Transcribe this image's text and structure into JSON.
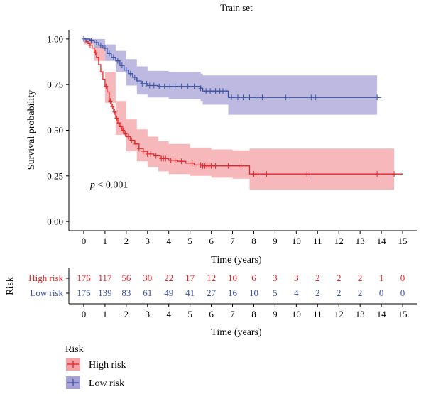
{
  "chart_data": {
    "type": "line",
    "title": "Train set",
    "xlabel": "Time (years)",
    "ylabel": "Survival probability",
    "xlim": [
      -0.7,
      15.7
    ],
    "ylim": [
      -0.05,
      1.05
    ],
    "x_ticks": [
      "0",
      "1",
      "2",
      "3",
      "4",
      "5",
      "6",
      "7",
      "8",
      "9",
      "10",
      "11",
      "12",
      "13",
      "14",
      "15"
    ],
    "y_ticks": [
      "0.00",
      "0.25",
      "0.50",
      "0.75",
      "1.00"
    ],
    "annotation": {
      "p_label": "p",
      "p_value": "< 0.001",
      "x": 0.3,
      "y": 0.185
    },
    "series": [
      {
        "name": "High risk",
        "color": "#e3262a",
        "band_color": "#f4a0a4",
        "curve": [
          [
            0,
            1.0
          ],
          [
            0.1,
            0.985
          ],
          [
            0.2,
            0.975
          ],
          [
            0.3,
            0.965
          ],
          [
            0.4,
            0.95
          ],
          [
            0.5,
            0.925
          ],
          [
            0.6,
            0.9
          ],
          [
            0.7,
            0.86
          ],
          [
            0.8,
            0.82
          ],
          [
            0.9,
            0.78
          ],
          [
            1.0,
            0.74
          ],
          [
            1.1,
            0.71
          ],
          [
            1.2,
            0.66
          ],
          [
            1.3,
            0.63
          ],
          [
            1.4,
            0.6
          ],
          [
            1.5,
            0.565
          ],
          [
            1.6,
            0.54
          ],
          [
            1.7,
            0.52
          ],
          [
            1.8,
            0.5
          ],
          [
            1.9,
            0.48
          ],
          [
            2.0,
            0.465
          ],
          [
            2.2,
            0.445
          ],
          [
            2.4,
            0.425
          ],
          [
            2.6,
            0.4
          ],
          [
            2.8,
            0.385
          ],
          [
            3.0,
            0.37
          ],
          [
            3.3,
            0.36
          ],
          [
            3.6,
            0.345
          ],
          [
            4.0,
            0.335
          ],
          [
            4.4,
            0.33
          ],
          [
            4.8,
            0.32
          ],
          [
            5.2,
            0.31
          ],
          [
            5.6,
            0.305
          ],
          [
            6.0,
            0.305
          ],
          [
            7.0,
            0.305
          ],
          [
            7.8,
            0.305
          ],
          [
            7.8,
            0.26
          ],
          [
            15.0,
            0.26
          ]
        ],
        "upper": [
          [
            0,
            1.0
          ],
          [
            0.5,
            0.96
          ],
          [
            1.0,
            0.82
          ],
          [
            1.5,
            0.66
          ],
          [
            2.0,
            0.56
          ],
          [
            2.5,
            0.505
          ],
          [
            3.0,
            0.465
          ],
          [
            3.5,
            0.44
          ],
          [
            4.0,
            0.425
          ],
          [
            5.0,
            0.405
          ],
          [
            6.0,
            0.395
          ],
          [
            7.0,
            0.39
          ],
          [
            7.8,
            0.39
          ],
          [
            7.8,
            0.4
          ],
          [
            14.6,
            0.4
          ]
        ],
        "lower": [
          [
            0,
            0.97
          ],
          [
            0.5,
            0.88
          ],
          [
            1.0,
            0.65
          ],
          [
            1.5,
            0.475
          ],
          [
            2.0,
            0.385
          ],
          [
            2.5,
            0.33
          ],
          [
            3.0,
            0.3
          ],
          [
            3.5,
            0.275
          ],
          [
            4.0,
            0.26
          ],
          [
            5.0,
            0.25
          ],
          [
            6.0,
            0.24
          ],
          [
            7.0,
            0.235
          ],
          [
            7.8,
            0.235
          ],
          [
            7.8,
            0.175
          ],
          [
            14.6,
            0.175
          ]
        ],
        "censors": [
          0.3,
          0.55,
          0.85,
          1.05,
          1.25,
          1.35,
          1.45,
          1.55,
          1.65,
          1.75,
          1.85,
          1.95,
          2.1,
          2.25,
          2.45,
          2.6,
          2.8,
          3.0,
          3.15,
          3.4,
          3.65,
          3.75,
          3.85,
          4.1,
          4.3,
          4.6,
          5.1,
          5.5,
          5.6,
          5.7,
          5.8,
          5.9,
          6.0,
          6.2,
          6.8,
          7.4,
          8.0,
          8.1,
          8.6,
          10.5,
          13.8,
          14.6
        ]
      },
      {
        "name": "Low risk",
        "color": "#3a53a4",
        "band_color": "#a7a2d6",
        "curve": [
          [
            0,
            1.0
          ],
          [
            0.3,
            0.99
          ],
          [
            0.5,
            0.98
          ],
          [
            0.7,
            0.965
          ],
          [
            0.9,
            0.95
          ],
          [
            1.1,
            0.92
          ],
          [
            1.3,
            0.9
          ],
          [
            1.5,
            0.88
          ],
          [
            1.7,
            0.855
          ],
          [
            1.9,
            0.83
          ],
          [
            2.1,
            0.81
          ],
          [
            2.3,
            0.79
          ],
          [
            2.5,
            0.77
          ],
          [
            2.7,
            0.755
          ],
          [
            3.0,
            0.745
          ],
          [
            3.5,
            0.74
          ],
          [
            4.5,
            0.74
          ],
          [
            5.5,
            0.73
          ],
          [
            5.6,
            0.715
          ],
          [
            6.8,
            0.715
          ],
          [
            6.8,
            0.68
          ],
          [
            14.0,
            0.68
          ]
        ],
        "upper": [
          [
            0,
            1.0
          ],
          [
            0.5,
            1.0
          ],
          [
            1.0,
            0.97
          ],
          [
            1.5,
            0.935
          ],
          [
            2.0,
            0.89
          ],
          [
            2.5,
            0.85
          ],
          [
            3.0,
            0.825
          ],
          [
            4.0,
            0.82
          ],
          [
            5.5,
            0.81
          ],
          [
            5.6,
            0.8
          ],
          [
            6.8,
            0.8
          ],
          [
            13.8,
            0.8
          ]
        ],
        "lower": [
          [
            0,
            0.98
          ],
          [
            0.5,
            0.95
          ],
          [
            1.0,
            0.88
          ],
          [
            1.5,
            0.82
          ],
          [
            2.0,
            0.745
          ],
          [
            2.5,
            0.695
          ],
          [
            3.0,
            0.68
          ],
          [
            4.0,
            0.67
          ],
          [
            5.5,
            0.66
          ],
          [
            5.6,
            0.64
          ],
          [
            6.8,
            0.64
          ],
          [
            6.8,
            0.585
          ],
          [
            13.8,
            0.585
          ]
        ],
        "censors": [
          0.0,
          0.15,
          0.35,
          0.6,
          0.8,
          1.0,
          1.2,
          1.4,
          1.6,
          1.8,
          2.0,
          2.2,
          2.4,
          2.55,
          2.75,
          2.95,
          3.1,
          3.3,
          3.55,
          3.8,
          4.05,
          4.3,
          4.6,
          4.9,
          5.2,
          5.5,
          5.75,
          5.95,
          6.2,
          6.4,
          6.55,
          6.7,
          6.95,
          7.25,
          7.5,
          7.8,
          8.1,
          8.4,
          9.5,
          10.7,
          10.9,
          13.8
        ]
      }
    ]
  },
  "risk_table": {
    "title": "Risk",
    "xlabel": "Time (years)",
    "x_ticks": [
      "0",
      "1",
      "2",
      "3",
      "4",
      "5",
      "6",
      "7",
      "8",
      "9",
      "10",
      "11",
      "12",
      "13",
      "14",
      "15"
    ],
    "rows": [
      {
        "name": "High risk",
        "color": "#e3262a",
        "values": [
          "176",
          "117",
          "56",
          "30",
          "22",
          "17",
          "12",
          "10",
          "6",
          "3",
          "3",
          "2",
          "2",
          "2",
          "1",
          "0"
        ]
      },
      {
        "name": "Low risk",
        "color": "#3a53a4",
        "values": [
          "175",
          "139",
          "83",
          "61",
          "49",
          "41",
          "27",
          "16",
          "10",
          "5",
          "4",
          "2",
          "2",
          "2",
          "0",
          "0"
        ]
      }
    ]
  },
  "legend": {
    "title": "Risk",
    "items": [
      {
        "name": "High risk",
        "color": "#e3262a",
        "fill": "#f4a0a4"
      },
      {
        "name": "Low risk",
        "color": "#3a53a4",
        "fill": "#a7a2d6"
      }
    ]
  }
}
